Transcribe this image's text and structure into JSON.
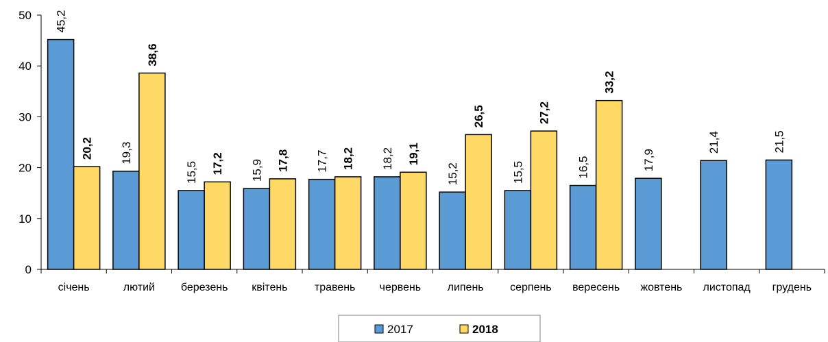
{
  "chart_data": {
    "type": "bar",
    "categories": [
      "січень",
      "лютий",
      "березень",
      "квітень",
      "травень",
      "червень",
      "липень",
      "серпень",
      "вересень",
      "жовтень",
      "листопад",
      "грудень"
    ],
    "series": [
      {
        "name": "2017",
        "values": [
          45.2,
          19.3,
          15.5,
          15.9,
          17.7,
          18.2,
          15.2,
          15.5,
          16.5,
          17.9,
          21.4,
          21.5
        ],
        "labels": [
          "45,2",
          "19,3",
          "15,5",
          "15,9",
          "17,7",
          "18,2",
          "15,2",
          "15,5",
          "16,5",
          "17,9",
          "21,4",
          "21,5"
        ],
        "color": "#5B9BD5",
        "label_bold": false
      },
      {
        "name": "2018",
        "values": [
          20.2,
          38.6,
          17.2,
          17.8,
          18.2,
          19.1,
          26.5,
          27.2,
          33.2,
          null,
          null,
          null
        ],
        "labels": [
          "20,2",
          "38,6",
          "17,2",
          "17,8",
          "18,2",
          "19,1",
          "26,5",
          "27,2",
          "33,2",
          "",
          "",
          ""
        ],
        "color": "#FFD966",
        "label_bold": true
      }
    ],
    "ylim": [
      0,
      50
    ],
    "yticks": [
      "0",
      "10",
      "20",
      "30",
      "40",
      "50"
    ],
    "title": "",
    "xlabel": "",
    "ylabel": "",
    "grid": false,
    "legend_position": "bottom-center"
  }
}
